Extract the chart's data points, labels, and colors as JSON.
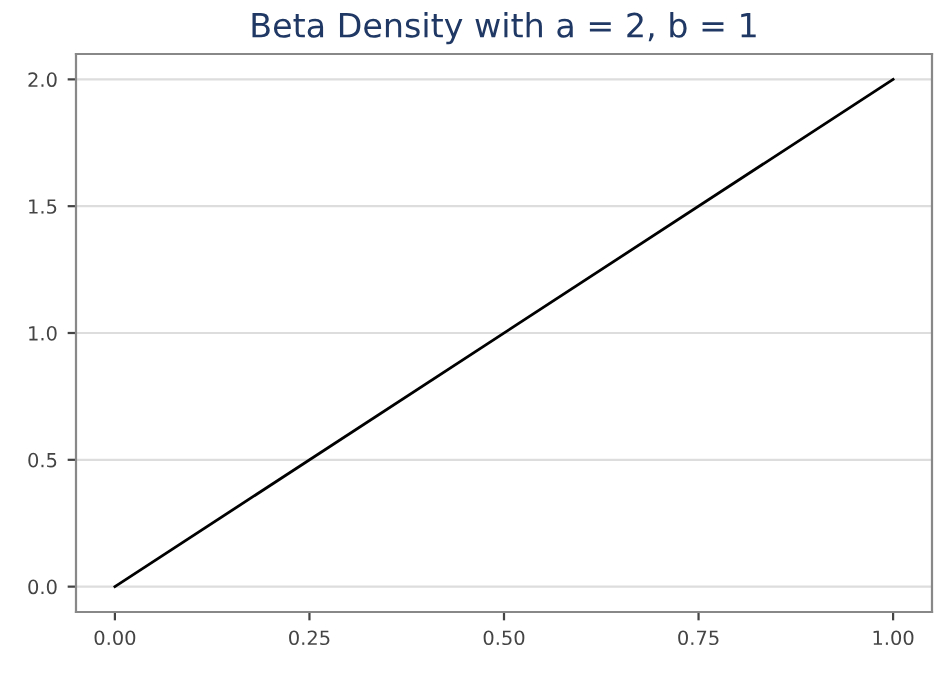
{
  "chart_data": {
    "type": "line",
    "title": "Beta Density with a = 2, b = 1",
    "x": [
      0,
      1
    ],
    "series": [
      {
        "color": "#000000",
        "values": [
          0,
          2
        ]
      }
    ],
    "xlim": [
      -0.05,
      1.05
    ],
    "xticks": [
      {
        "value": 0,
        "label": "0.00"
      },
      {
        "value": 0.25,
        "label": "0.25"
      },
      {
        "value": 0.5,
        "label": "0.50"
      },
      {
        "value": 0.75,
        "label": "0.75"
      },
      {
        "value": 1,
        "label": "1.00"
      }
    ],
    "ylim": [
      -0.1,
      2.1
    ],
    "yticks": [
      {
        "value": 0,
        "label": "0.0"
      },
      {
        "value": 0.5,
        "label": "0.5"
      },
      {
        "value": 1,
        "label": "1.0"
      },
      {
        "value": 1.5,
        "label": "1.5"
      },
      {
        "value": 2,
        "label": "2.0"
      }
    ],
    "grid": "y",
    "marker": "none",
    "line_style": "solid"
  }
}
